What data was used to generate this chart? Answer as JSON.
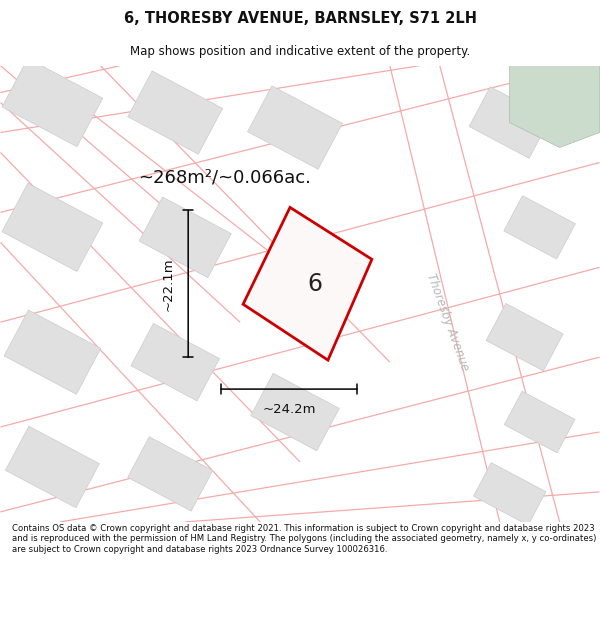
{
  "title": "6, THORESBY AVENUE, BARNSLEY, S71 2LH",
  "subtitle": "Map shows position and indicative extent of the property.",
  "footer": "Contains OS data © Crown copyright and database right 2021. This information is subject to Crown copyright and database rights 2023 and is reproduced with the permission of HM Land Registry. The polygons (including the associated geometry, namely x, y co-ordinates) are subject to Crown copyright and database rights 2023 Ordnance Survey 100026316.",
  "area_label": "~268m²/~0.066ac.",
  "width_label": "~24.2m",
  "height_label": "~22.1m",
  "number_label": "6",
  "bg_color": "#f2f2f2",
  "block_color": "#e0e0e0",
  "block_edge_color": "#cccccc",
  "road_line_color": "#f5aaaa",
  "property_fill": "#fdf8f8",
  "property_stroke": "#cc0000",
  "green_color": "#ccdccc",
  "street_label_color": "#b8b8b8",
  "street_label": "Thoresby Avenue",
  "text_color": "#111111"
}
